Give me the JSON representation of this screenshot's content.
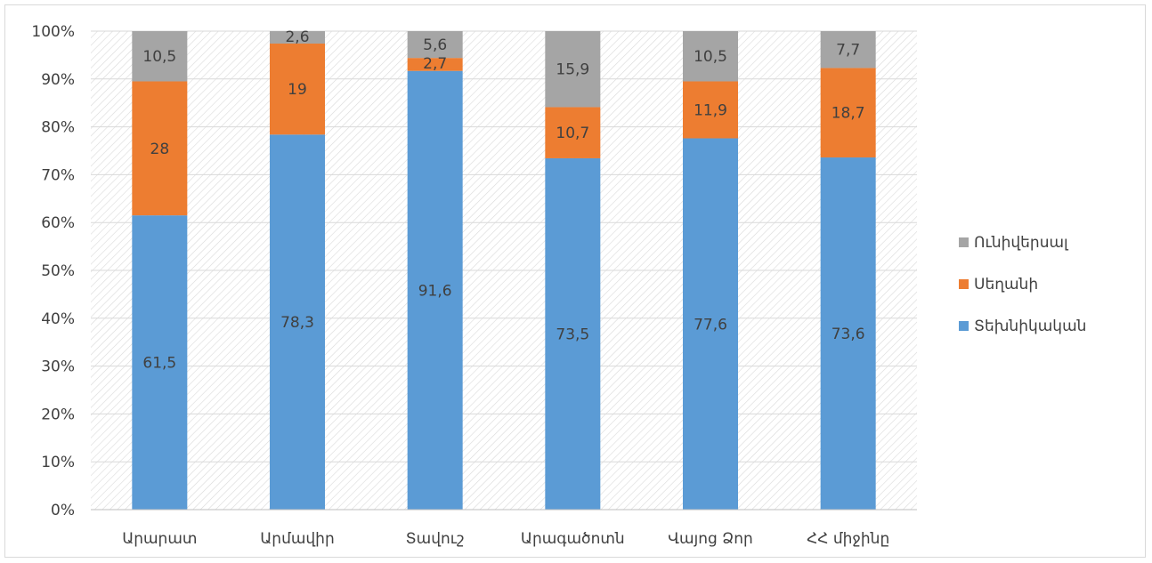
{
  "chart_data": {
    "type": "bar",
    "stacked": true,
    "normalized": true,
    "categories": [
      "Արարատ",
      "Արմավիր",
      "Տավուշ",
      "Արագածոտն",
      "Վայոց Ձոր",
      "ՀՀ միջինը"
    ],
    "series": [
      {
        "name": "Տեխնիկական",
        "color": "#5b9bd5",
        "values": [
          61.5,
          78.3,
          91.6,
          73.5,
          77.6,
          73.6
        ]
      },
      {
        "name": "Սեղանի",
        "color": "#ed7d31",
        "values": [
          28,
          19,
          2.7,
          10.7,
          11.9,
          18.7
        ]
      },
      {
        "name": "Ունիվերսալ",
        "color": "#a5a5a5",
        "values": [
          10.5,
          2.6,
          5.6,
          15.9,
          10.5,
          7.7
        ]
      }
    ],
    "data_labels": [
      [
        "61,5",
        "78,3",
        "91,6",
        "73,5",
        "77,6",
        "73,6"
      ],
      [
        "28",
        "19",
        "2,7",
        "10,7",
        "11,9",
        "18,7"
      ],
      [
        "10,5",
        "2,6",
        "5,6",
        "15,9",
        "10,5",
        "7,7"
      ]
    ],
    "yticks": [
      "0%",
      "10%",
      "20%",
      "30%",
      "40%",
      "50%",
      "60%",
      "70%",
      "80%",
      "90%",
      "100%"
    ],
    "ylim": [
      0,
      100
    ],
    "legend_order": [
      "Ունիվերսալ",
      "Սեղանի",
      "Տեխնիկական"
    ],
    "legend_position": "right",
    "plot_background": "hatched",
    "grid": true,
    "title": "",
    "xlabel": "",
    "ylabel": ""
  }
}
